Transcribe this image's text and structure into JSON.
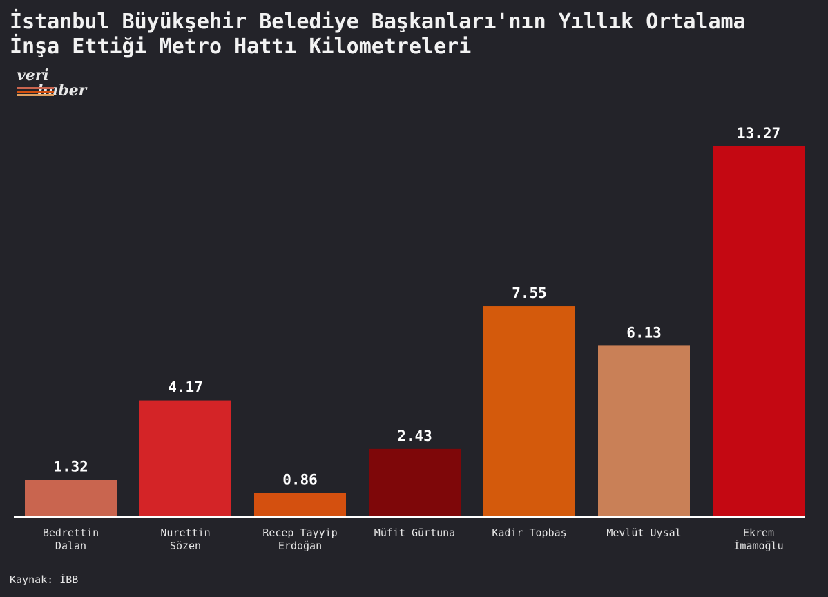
{
  "chart_data": {
    "type": "bar",
    "title": "İstanbul Büyükşehir Belediye Başkanları'nın Yıllık Ortalama İnşa Ettiği Metro Hattı Kilometreleri",
    "logo": [
      "veri",
      "haber"
    ],
    "source": "Kaynak: İBB",
    "categories": [
      "Bedrettin Dalan",
      "Nurettin Sözen",
      "Recep Tayyip Erdoğan",
      "Müfit Gürtuna",
      "Kadir Topbaş",
      "Mevlüt Uysal",
      "Ekrem İmamoğlu"
    ],
    "values": [
      1.32,
      4.17,
      0.86,
      2.43,
      7.55,
      6.13,
      13.27
    ],
    "colors": [
      "#c9654f",
      "#d42427",
      "#d4500f",
      "#7e0709",
      "#d45a0c",
      "#c98057",
      "#c40812"
    ]
  }
}
